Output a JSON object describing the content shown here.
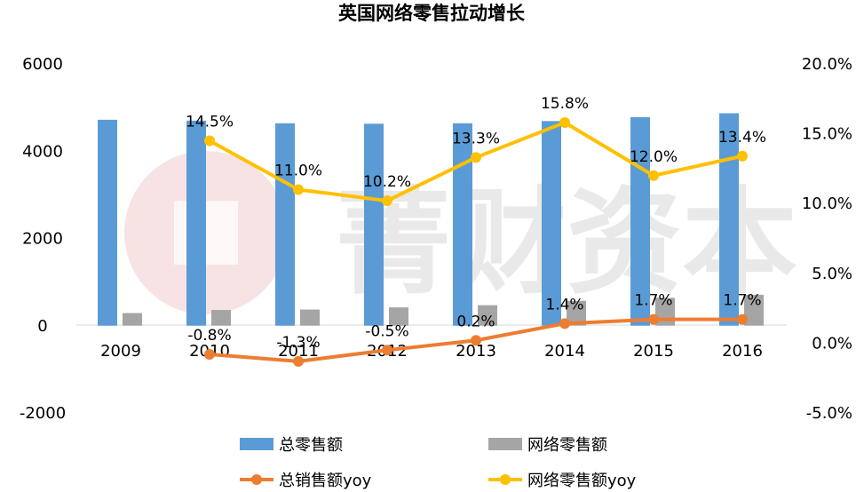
{
  "chart_data": {
    "type": "bar",
    "title": "英国网络零售拉动增长",
    "categories": [
      "2009",
      "2010",
      "2011",
      "2012",
      "2013",
      "2014",
      "2015",
      "2016"
    ],
    "left_axis": {
      "ylim": [
        -2000,
        6000
      ],
      "ticks": [
        "6000",
        "4000",
        "2000",
        "0",
        "-2000"
      ],
      "tick_values": [
        6000,
        4000,
        2000,
        0,
        -2000
      ]
    },
    "right_axis": {
      "ylim": [
        -5.0,
        20.0
      ],
      "ticks": [
        "20.0%",
        "15.0%",
        "10.0%",
        "5.0%",
        "0.0%",
        "-5.0%"
      ],
      "tick_values": [
        20,
        15,
        10,
        5,
        0,
        -5
      ]
    },
    "series": [
      {
        "name": "总零售额",
        "kind": "bar",
        "axis": "left",
        "color": "#5B9BD5",
        "values": [
          4720,
          4700,
          4640,
          4630,
          4640,
          4690,
          4780,
          4870
        ]
      },
      {
        "name": "网络零售额",
        "kind": "bar",
        "axis": "left",
        "color": "#A5A5A5",
        "values": [
          290,
          360,
          370,
          420,
          470,
          570,
          640,
          710
        ]
      },
      {
        "name": "总销售额yoy",
        "kind": "line",
        "axis": "right",
        "color": "#ED7D31",
        "values": [
          null,
          -0.8,
          -1.3,
          -0.5,
          0.2,
          1.4,
          1.7,
          1.7
        ],
        "labels": [
          "",
          "-0.8%",
          "-1.3%",
          "-0.5%",
          "0.2%",
          "1.4%",
          "1.7%",
          "1.7%"
        ]
      },
      {
        "name": "网络零售额yoy",
        "kind": "line",
        "axis": "right",
        "color": "#FFC000",
        "values": [
          null,
          14.5,
          11.0,
          10.2,
          13.3,
          15.8,
          12.0,
          13.4
        ],
        "labels": [
          "",
          "14.5%",
          "11.0%",
          "10.2%",
          "13.3%",
          "15.8%",
          "12.0%",
          "13.4%"
        ]
      }
    ],
    "legend_position": "bottom",
    "grid": false
  },
  "watermark": "菁财资本"
}
